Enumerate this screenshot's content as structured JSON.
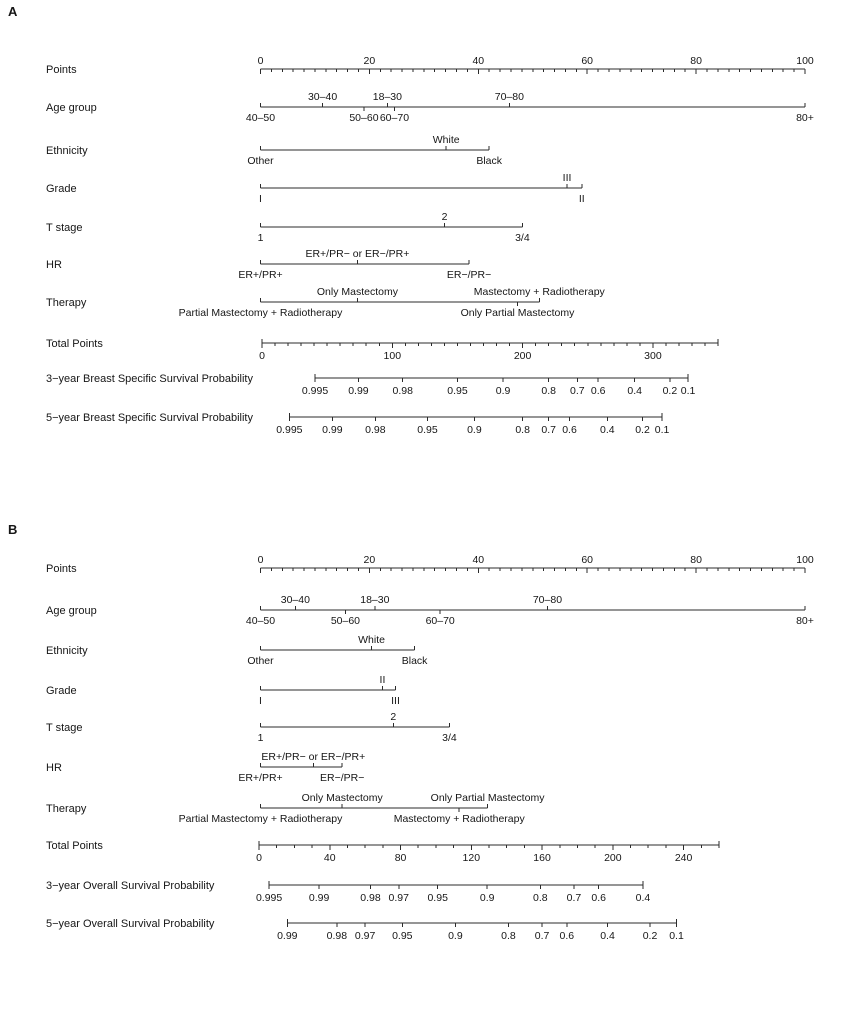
{
  "figure": {
    "description": "Two-panel nomogram figure",
    "panel_letters": [
      "A",
      "B"
    ],
    "colors": {
      "background": "#ffffff",
      "line": "#2b2b2b",
      "text": "#161616"
    }
  },
  "chart_data": [
    {
      "type": "nomogram",
      "panel": "A",
      "point_axis": {
        "label": "Points",
        "min": 0,
        "max": 100,
        "major_step": 20,
        "minor_step": 2
      },
      "predictors": [
        {
          "label": "Age group",
          "categories": [
            {
              "name": "40–50",
              "points": 0,
              "side": "below"
            },
            {
              "name": "30–40",
              "points": 11.4,
              "side": "above"
            },
            {
              "name": "50–60",
              "points": 19.0,
              "side": "below"
            },
            {
              "name": "18–30",
              "points": 23.3,
              "side": "above"
            },
            {
              "name": "60–70",
              "points": 24.6,
              "side": "below"
            },
            {
              "name": "70–80",
              "points": 45.7,
              "side": "above"
            },
            {
              "name": "80+",
              "points": 100,
              "side": "below"
            }
          ]
        },
        {
          "label": "Ethnicity",
          "categories": [
            {
              "name": "Other",
              "points": 0,
              "side": "below"
            },
            {
              "name": "White",
              "points": 34.1,
              "side": "above"
            },
            {
              "name": "Black",
              "points": 42.0,
              "side": "below"
            }
          ]
        },
        {
          "label": "Grade",
          "categories": [
            {
              "name": "I",
              "points": 0,
              "side": "below"
            },
            {
              "name": "III",
              "points": 56.3,
              "side": "above"
            },
            {
              "name": "II",
              "points": 59.0,
              "side": "below"
            }
          ]
        },
        {
          "label": "T stage",
          "categories": [
            {
              "name": "1",
              "points": 0,
              "side": "below"
            },
            {
              "name": "2",
              "points": 33.8,
              "side": "above"
            },
            {
              "name": "3/4",
              "points": 48.1,
              "side": "below"
            }
          ]
        },
        {
          "label": "HR",
          "categories": [
            {
              "name": "ER+/PR+",
              "points": 0,
              "side": "below"
            },
            {
              "name": "ER+/PR− or ER−/PR+",
              "points": 17.8,
              "side": "above"
            },
            {
              "name": "ER−/PR−",
              "points": 38.3,
              "side": "below"
            }
          ]
        },
        {
          "label": "Therapy",
          "categories": [
            {
              "name": "Partial Mastectomy + Radiotherapy",
              "points": 0,
              "side": "below"
            },
            {
              "name": "Only Mastectomy",
              "points": 17.8,
              "side": "above"
            },
            {
              "name": "Only Partial Mastectomy",
              "points": 47.2,
              "side": "below"
            },
            {
              "name": "Mastectomy + Radiotherapy",
              "points": 51.2,
              "side": "above"
            }
          ]
        }
      ],
      "total_axis": {
        "label": "Total Points",
        "min": 0,
        "max": 350,
        "major_step": 100,
        "minor_step": 10
      },
      "outcome_axes": [
        {
          "label": "3−year Breast Specific Survival Probability",
          "ticks": [
            {
              "p": "0.995",
              "total": 40.7
            },
            {
              "p": "0.99",
              "total": 74
            },
            {
              "p": "0.98",
              "total": 108
            },
            {
              "p": "0.95",
              "total": 150
            },
            {
              "p": "0.9",
              "total": 185
            },
            {
              "p": "0.8",
              "total": 220
            },
            {
              "p": "0.7",
              "total": 242
            },
            {
              "p": "0.6",
              "total": 258
            },
            {
              "p": "0.4",
              "total": 286
            },
            {
              "p": "0.2",
              "total": 313
            },
            {
              "p": "0.1",
              "total": 327
            }
          ]
        },
        {
          "label": "5−year Breast Specific Survival Probability",
          "ticks": [
            {
              "p": "0.995",
              "total": 21
            },
            {
              "p": "0.99",
              "total": 54
            },
            {
              "p": "0.98",
              "total": 87
            },
            {
              "p": "0.95",
              "total": 127
            },
            {
              "p": "0.9",
              "total": 163
            },
            {
              "p": "0.8",
              "total": 200
            },
            {
              "p": "0.7",
              "total": 220
            },
            {
              "p": "0.6",
              "total": 236
            },
            {
              "p": "0.4",
              "total": 265
            },
            {
              "p": "0.2",
              "total": 292
            },
            {
              "p": "0.1",
              "total": 307
            }
          ]
        }
      ]
    },
    {
      "type": "nomogram",
      "panel": "B",
      "point_axis": {
        "label": "Points",
        "min": 0,
        "max": 100,
        "major_step": 20,
        "minor_step": 2
      },
      "predictors": [
        {
          "label": "Age group",
          "categories": [
            {
              "name": "40–50",
              "points": 0,
              "side": "below"
            },
            {
              "name": "30–40",
              "points": 6.4,
              "side": "above"
            },
            {
              "name": "50–60",
              "points": 15.6,
              "side": "below"
            },
            {
              "name": "18–30",
              "points": 21.0,
              "side": "above"
            },
            {
              "name": "60–70",
              "points": 33.0,
              "side": "below"
            },
            {
              "name": "70–80",
              "points": 52.7,
              "side": "above"
            },
            {
              "name": "80+",
              "points": 100,
              "side": "below"
            }
          ]
        },
        {
          "label": "Ethnicity",
          "categories": [
            {
              "name": "Other",
              "points": 0,
              "side": "below"
            },
            {
              "name": "White",
              "points": 20.4,
              "side": "above"
            },
            {
              "name": "Black",
              "points": 28.3,
              "side": "below"
            }
          ]
        },
        {
          "label": "Grade",
          "categories": [
            {
              "name": "I",
              "points": 0,
              "side": "below"
            },
            {
              "name": "II",
              "points": 22.4,
              "side": "above"
            },
            {
              "name": "III",
              "points": 24.8,
              "side": "below"
            }
          ]
        },
        {
          "label": "T stage",
          "categories": [
            {
              "name": "1",
              "points": 0,
              "side": "below"
            },
            {
              "name": "2",
              "points": 24.4,
              "side": "above"
            },
            {
              "name": "3/4",
              "points": 34.7,
              "side": "below"
            }
          ]
        },
        {
          "label": "HR",
          "categories": [
            {
              "name": "ER+/PR+",
              "points": 0,
              "side": "below"
            },
            {
              "name": "ER+/PR− or ER−/PR+",
              "points": 9.7,
              "side": "above"
            },
            {
              "name": "ER−/PR−",
              "points": 15.0,
              "side": "below"
            }
          ]
        },
        {
          "label": "Therapy",
          "categories": [
            {
              "name": "Partial Mastectomy + Radiotherapy",
              "points": 0,
              "side": "below"
            },
            {
              "name": "Only Mastectomy",
              "points": 15.0,
              "side": "above"
            },
            {
              "name": "Mastectomy + Radiotherapy",
              "points": 36.5,
              "side": "below"
            },
            {
              "name": "Only Partial Mastectomy",
              "points": 41.7,
              "side": "above"
            }
          ]
        }
      ],
      "total_axis": {
        "label": "Total Points",
        "min": 0,
        "max": 260,
        "major_step": 40,
        "minor_step": 10
      },
      "outcome_axes": [
        {
          "label": "3−year Overall Survival Probability",
          "ticks": [
            {
              "p": "0.995",
              "total": 5.7
            },
            {
              "p": "0.99",
              "total": 34
            },
            {
              "p": "0.98",
              "total": 63
            },
            {
              "p": "0.97",
              "total": 79
            },
            {
              "p": "0.95",
              "total": 101
            },
            {
              "p": "0.9",
              "total": 129
            },
            {
              "p": "0.8",
              "total": 159
            },
            {
              "p": "0.7",
              "total": 178
            },
            {
              "p": "0.6",
              "total": 192
            },
            {
              "p": "0.4",
              "total": 217
            }
          ]
        },
        {
          "label": "5−year Overall Survival Probability",
          "ticks": [
            {
              "p": "0.99",
              "total": 16
            },
            {
              "p": "0.98",
              "total": 44
            },
            {
              "p": "0.97",
              "total": 60
            },
            {
              "p": "0.95",
              "total": 81
            },
            {
              "p": "0.9",
              "total": 111
            },
            {
              "p": "0.8",
              "total": 141
            },
            {
              "p": "0.7",
              "total": 160
            },
            {
              "p": "0.6",
              "total": 174
            },
            {
              "p": "0.4",
              "total": 197
            },
            {
              "p": "0.2",
              "total": 221
            },
            {
              "p": "0.1",
              "total": 236
            }
          ]
        }
      ]
    }
  ]
}
